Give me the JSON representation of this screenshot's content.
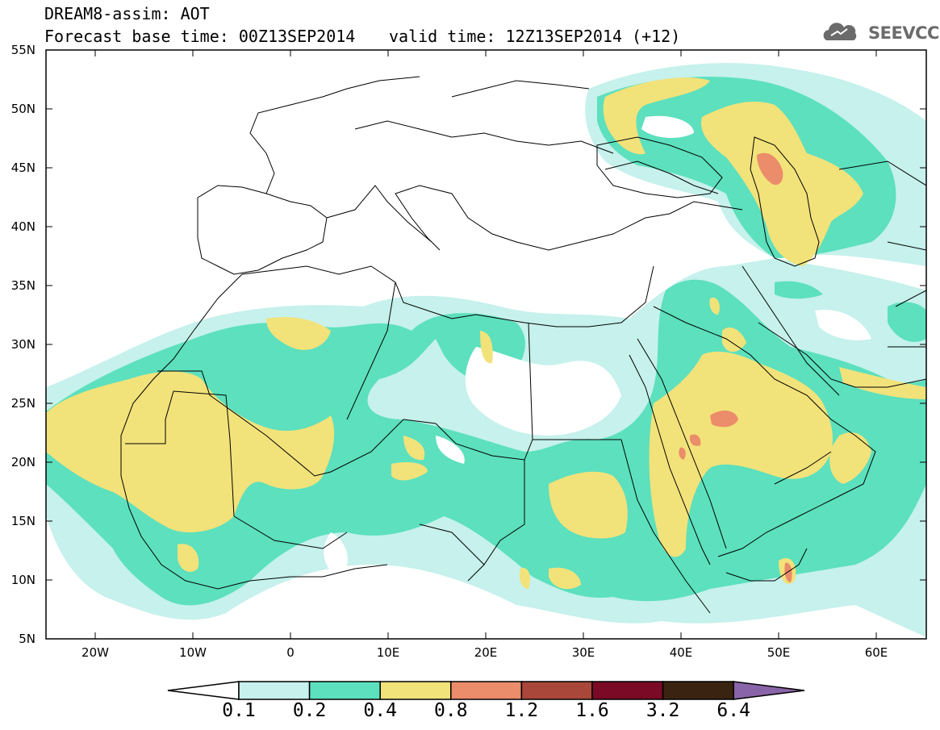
{
  "header": {
    "title": "DREAM8-assim: AOT",
    "base_time": "Forecast base time: 00Z13SEP2014",
    "valid_time": "valid time: 12Z13SEP2014 (+12)",
    "logo_text": "SEEVCCC"
  },
  "axes": {
    "lat_labels": [
      "55N",
      "50N",
      "45N",
      "40N",
      "35N",
      "30N",
      "25N",
      "20N",
      "15N",
      "10N",
      "5N"
    ],
    "lon_labels": [
      "20W",
      "10W",
      "0",
      "10E",
      "20E",
      "30E",
      "40E",
      "50E",
      "60E"
    ]
  },
  "legend": {
    "labels": [
      "0.1",
      "0.2",
      "0.4",
      "0.8",
      "1.2",
      "1.6",
      "3.2",
      "6.4"
    ],
    "colors": [
      "#c6f1ec",
      "#5ce0be",
      "#f2e27a",
      "#eb8c6a",
      "#a8473a",
      "#7a0a26",
      "#3b2312",
      "#8a64a8"
    ]
  },
  "colors": {
    "level_0_1": "#c6f1ec",
    "level_0_2": "#5ce0be",
    "level_0_4": "#f2e27a",
    "level_0_8": "#eb8c6a",
    "border": "#000000"
  }
}
